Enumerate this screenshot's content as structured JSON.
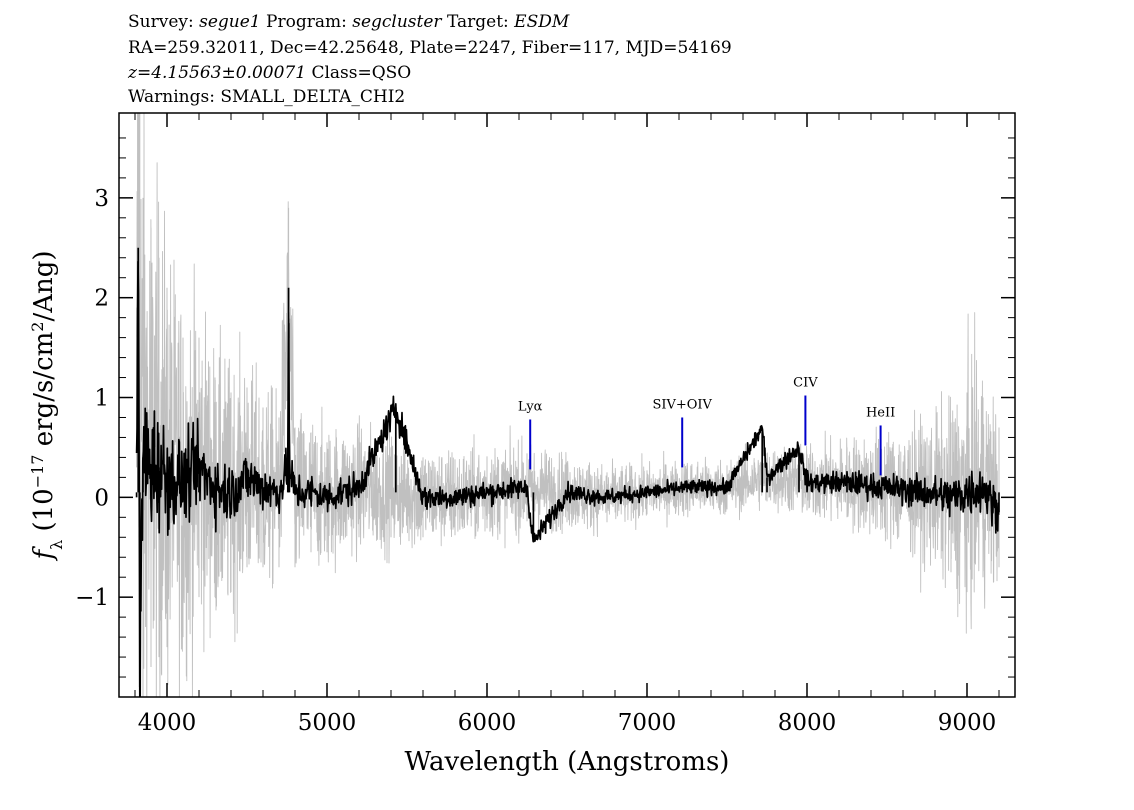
{
  "header": {
    "line1": {
      "survey_key": "Survey:",
      "survey": "segue1",
      "program_key": "Program:",
      "program": "segcluster",
      "target_key": "Target:",
      "target": "ESDM"
    },
    "line2": "RA=259.32011, Dec=42.25648, Plate=2247, Fiber=117, MJD=54169",
    "line3": {
      "redshift": "z=4.15563±0.00071",
      "class": "Class=QSO"
    },
    "line4": "Warnings: SMALL_DELTA_CHI2"
  },
  "chart_data": {
    "type": "line",
    "xlabel": "Wavelength (Angstroms)",
    "ylabel": "f_λ (10^-17 erg/s/cm^2/Ang)",
    "ylabel_parts": {
      "f": "f",
      "sub": "λ",
      "pre": " (10",
      "exp": "−17",
      "mid": " erg/s/cm",
      "exp2": "2",
      "post": "/Ang)"
    },
    "xlim": [
      3700,
      9300
    ],
    "ylim": [
      -2.0,
      3.85
    ],
    "x_ticks": [
      4000,
      5000,
      6000,
      7000,
      8000,
      9000
    ],
    "x_tick_labels": [
      "4000",
      "5000",
      "6000",
      "7000",
      "8000",
      "9000"
    ],
    "y_ticks": [
      -1,
      0,
      1,
      2,
      3
    ],
    "y_tick_labels": [
      "−1",
      "0",
      "1",
      "2",
      "3"
    ],
    "grid": false,
    "series": [
      {
        "style": "noise",
        "color": "#c0c0c0",
        "x": [
          3810,
          3820,
          3830,
          3850,
          3900,
          3950,
          4000,
          4100,
          4200,
          4300,
          4400,
          4500,
          4600,
          4700,
          4760,
          4800,
          4900,
          5000,
          5200,
          5400,
          5600,
          5800,
          6000,
          6250,
          6500,
          6750,
          7000,
          7250,
          7500,
          7750,
          8000,
          8250,
          8500,
          8750,
          8900,
          9000,
          9100,
          9200
        ],
        "values": [
          1.1,
          3.8,
          1.2,
          0.5,
          0.5,
          0.4,
          0.3,
          0.1,
          0.3,
          0.1,
          0.05,
          0.2,
          0.1,
          0.05,
          2.0,
          0.0,
          0.05,
          0.0,
          0.1,
          0.05,
          0.0,
          0.0,
          0.05,
          0.1,
          0.05,
          0.0,
          0.05,
          0.1,
          0.1,
          0.2,
          0.15,
          0.15,
          0.1,
          0.05,
          0.0,
          0.05,
          0.1,
          0.0
        ],
        "noise": [
          0.8,
          3.5,
          3.0,
          2.5,
          2.2,
          2.0,
          1.8,
          1.5,
          1.3,
          1.1,
          1.0,
          0.9,
          0.8,
          0.75,
          0.9,
          0.7,
          0.6,
          0.55,
          0.5,
          0.45,
          0.4,
          0.38,
          0.36,
          0.34,
          0.3,
          0.25,
          0.22,
          0.22,
          0.22,
          0.24,
          0.28,
          0.35,
          0.45,
          0.55,
          0.75,
          1.0,
          0.9,
          0.7
        ]
      },
      {
        "style": "flux",
        "color": "#000000",
        "x": [
          3810,
          3820,
          3830,
          3850,
          3900,
          3950,
          4000,
          4100,
          4200,
          4300,
          4400,
          4500,
          4600,
          4700,
          4755,
          4760,
          4765,
          4800,
          4900,
          5000,
          5200,
          5430,
          5600,
          5800,
          6000,
          6250,
          6290,
          6500,
          6750,
          7000,
          7250,
          7500,
          7720,
          7750,
          7950,
          8000,
          8250,
          8500,
          8750,
          8900,
          9000,
          9100,
          9200
        ],
        "values": [
          0.0,
          2.5,
          -1.9,
          0.4,
          0.3,
          0.3,
          0.2,
          0.15,
          0.3,
          0.1,
          0.05,
          0.2,
          0.1,
          0.05,
          0.3,
          2.1,
          0.3,
          0.05,
          0.05,
          0.0,
          0.1,
          0.9,
          0.0,
          0.0,
          0.05,
          0.1,
          -0.45,
          0.05,
          0.0,
          0.05,
          0.1,
          0.1,
          0.7,
          0.2,
          0.5,
          0.15,
          0.15,
          0.1,
          0.05,
          0.0,
          0.05,
          0.1,
          -0.15
        ],
        "noise": [
          0.5,
          1.4,
          1.2,
          0.9,
          0.8,
          0.7,
          0.6,
          0.5,
          0.45,
          0.4,
          0.35,
          0.3,
          0.28,
          0.26,
          0.25,
          0.25,
          0.25,
          0.24,
          0.22,
          0.2,
          0.18,
          0.17,
          0.15,
          0.14,
          0.13,
          0.12,
          0.12,
          0.11,
          0.1,
          0.09,
          0.09,
          0.09,
          0.1,
          0.1,
          0.11,
          0.12,
          0.14,
          0.16,
          0.2,
          0.25,
          0.3,
          0.28,
          0.25
        ]
      }
    ],
    "line_markers": [
      {
        "label": "Lyα",
        "x": 6270,
        "y_bottom": 0.28,
        "y_top": 0.78
      },
      {
        "label": "SIV+OIV",
        "x": 7220,
        "y_bottom": 0.3,
        "y_top": 0.8
      },
      {
        "label": "CIV",
        "x": 7990,
        "y_bottom": 0.52,
        "y_top": 1.02
      },
      {
        "label": "HeII",
        "x": 8460,
        "y_bottom": 0.22,
        "y_top": 0.72
      }
    ],
    "marker_color": "#0000cc"
  }
}
